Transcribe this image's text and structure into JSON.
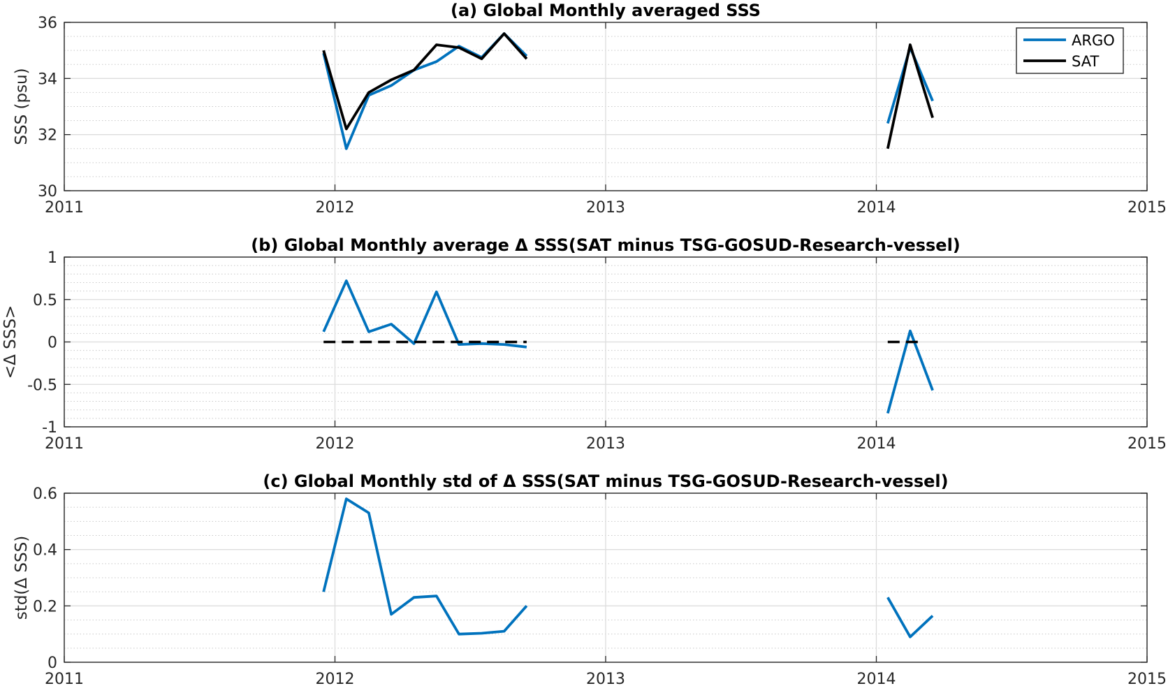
{
  "chart_data": [
    {
      "type": "line",
      "title": "(a) Global Monthly averaged SSS",
      "xlabel": "",
      "ylabel": "SSS (psu)",
      "xlim": [
        2011,
        2015
      ],
      "ylim": [
        30,
        36
      ],
      "xticks": [
        "2011",
        "2012",
        "2013",
        "2014",
        "2015"
      ],
      "yticks": [
        "30",
        "32",
        "34",
        "36"
      ],
      "grid": true,
      "minor_grid": true,
      "legend": "top-right",
      "series": [
        {
          "name": "ARGO",
          "color": "#0072BD",
          "segments": [
            {
              "x": [
                2011.958,
                2012.042,
                2012.125,
                2012.208,
                2012.292,
                2012.375,
                2012.458,
                2012.542,
                2012.625,
                2012.708
              ],
              "y": [
                34.9,
                31.5,
                33.4,
                33.75,
                34.3,
                34.6,
                35.15,
                34.75,
                35.6,
                34.8
              ]
            },
            {
              "x": [
                2014.042,
                2014.125,
                2014.208
              ],
              "y": [
                32.4,
                35.1,
                33.2
              ]
            }
          ]
        },
        {
          "name": "SAT",
          "color": "#000000",
          "segments": [
            {
              "x": [
                2011.958,
                2012.042,
                2012.125,
                2012.208,
                2012.292,
                2012.375,
                2012.458,
                2012.542,
                2012.625,
                2012.708
              ],
              "y": [
                35.0,
                32.2,
                33.5,
                33.95,
                34.3,
                35.2,
                35.1,
                34.7,
                35.6,
                34.7
              ]
            },
            {
              "x": [
                2014.042,
                2014.125,
                2014.208
              ],
              "y": [
                31.5,
                35.2,
                32.6
              ]
            }
          ]
        }
      ]
    },
    {
      "type": "line",
      "title": "(b) Global Monthly average Δ SSS(SAT minus TSG-GOSUD-Research-vessel)",
      "xlabel": "",
      "ylabel": "<Δ SSS>",
      "xlim": [
        2011,
        2015
      ],
      "ylim": [
        -1,
        1
      ],
      "xticks": [
        "2011",
        "2012",
        "2013",
        "2014",
        "2015"
      ],
      "yticks": [
        "-1",
        "-0.5",
        "0",
        "0.5",
        "1"
      ],
      "grid": true,
      "minor_grid": true,
      "series": [
        {
          "color": "#0072BD",
          "segments": [
            {
              "x": [
                2011.958,
                2012.042,
                2012.125,
                2012.208,
                2012.292,
                2012.375,
                2012.458,
                2012.542,
                2012.625,
                2012.708
              ],
              "y": [
                0.12,
                0.72,
                0.12,
                0.21,
                -0.02,
                0.59,
                -0.03,
                -0.02,
                -0.03,
                -0.06
              ]
            },
            {
              "x": [
                2014.042,
                2014.125,
                2014.208
              ],
              "y": [
                -0.84,
                0.13,
                -0.57
              ]
            }
          ]
        },
        {
          "color": "#000000",
          "style": "dashed",
          "segments": [
            {
              "x": [
                2011.958,
                2012.708
              ],
              "y": [
                0,
                0
              ]
            },
            {
              "x": [
                2014.042,
                2014.167
              ],
              "y": [
                0,
                0
              ]
            }
          ]
        }
      ]
    },
    {
      "type": "line",
      "title": "(c) Global Monthly std of Δ SSS(SAT minus TSG-GOSUD-Research-vessel)",
      "xlabel": "",
      "ylabel": "std(Δ SSS)",
      "xlim": [
        2011,
        2015
      ],
      "ylim": [
        0,
        0.6
      ],
      "xticks": [
        "2011",
        "2012",
        "2013",
        "2014",
        "2015"
      ],
      "yticks": [
        "0",
        "0.2",
        "0.4",
        "0.6"
      ],
      "grid": true,
      "minor_grid": true,
      "series": [
        {
          "color": "#0072BD",
          "segments": [
            {
              "x": [
                2011.958,
                2012.042,
                2012.125,
                2012.208,
                2012.292,
                2012.375,
                2012.458,
                2012.542,
                2012.625,
                2012.708
              ],
              "y": [
                0.25,
                0.58,
                0.53,
                0.17,
                0.23,
                0.235,
                0.1,
                0.103,
                0.11,
                0.2
              ]
            },
            {
              "x": [
                2014.042,
                2014.125,
                2014.208
              ],
              "y": [
                0.23,
                0.09,
                0.165
              ]
            }
          ]
        }
      ]
    }
  ]
}
